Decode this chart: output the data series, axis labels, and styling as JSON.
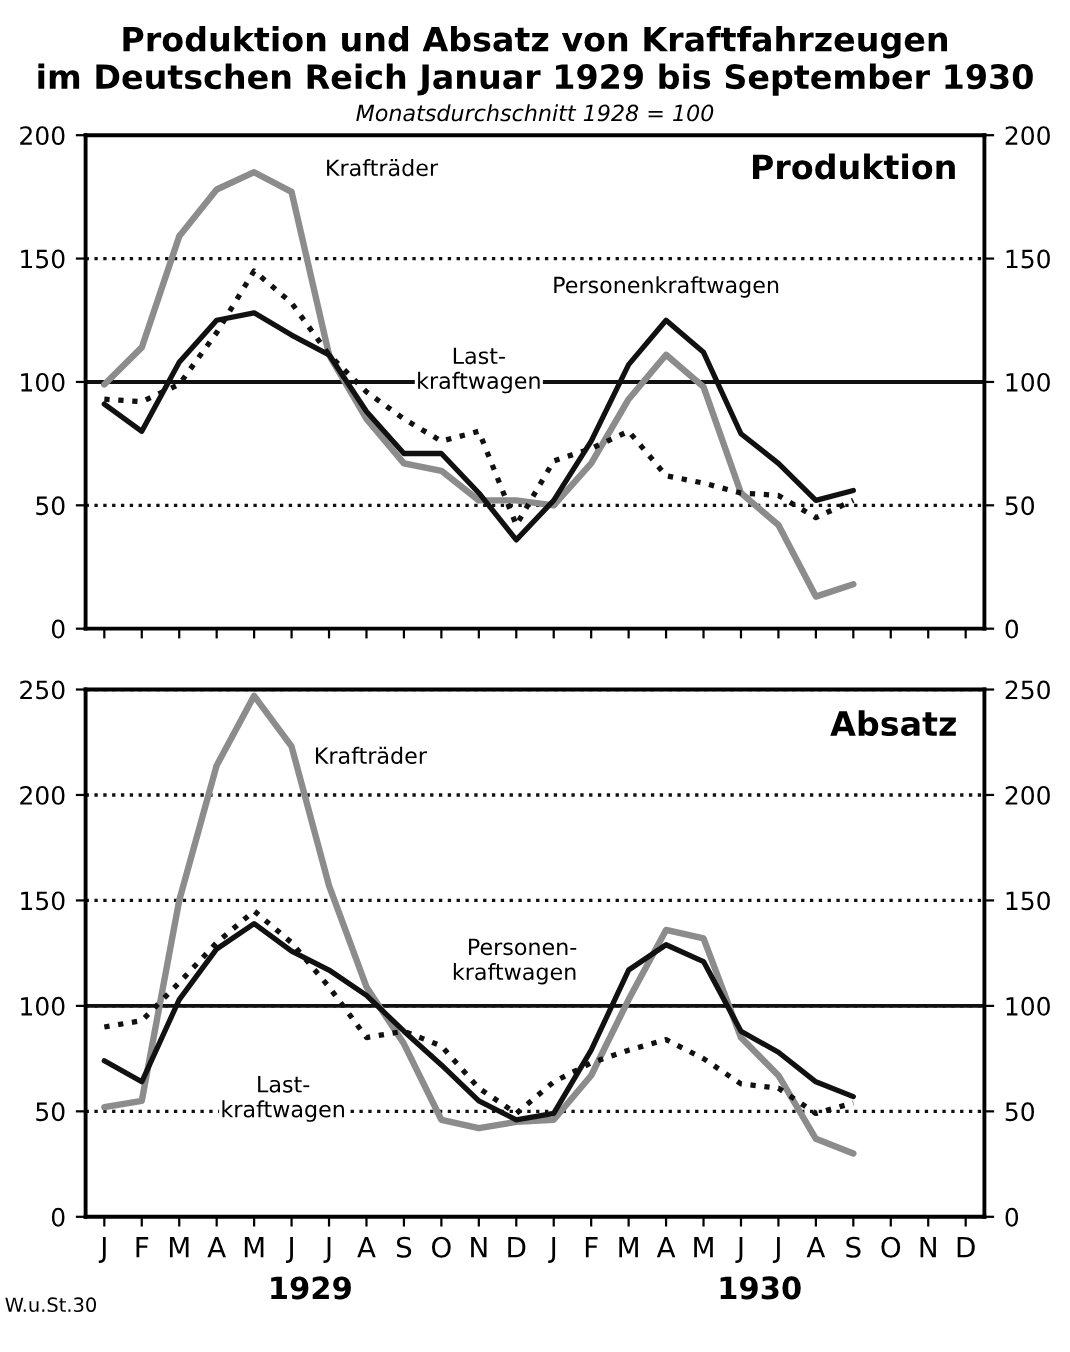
{
  "chart_data": [
    {
      "type": "line",
      "title": "Produktion und Absatz von Kraftfahrzeugen\nim Deutschen Reich Januar 1929 bis September 1930",
      "subtitle": "Monatsdurchschnitt 1928 = 100",
      "categories": [
        null,
        null,
        null,
        null,
        null,
        null,
        null,
        null,
        null,
        null,
        null,
        null,
        null,
        null,
        null,
        null,
        null,
        null,
        null,
        null,
        null,
        null,
        null,
        null
      ],
      "series": [
        {
          "name": "Krafträder",
          "color": "#8c8c8c",
          "line_style": "solid",
          "values": [
            99,
            114,
            159,
            178,
            185,
            177,
            111,
            85,
            67,
            64,
            52,
            52,
            50,
            67,
            93,
            111,
            98,
            55,
            42,
            13,
            18,
            null,
            null,
            null
          ]
        },
        {
          "name": "Personenkraftwagen",
          "color": "#111111",
          "line_style": "solid",
          "values": [
            91,
            80,
            108,
            125,
            128,
            119,
            111,
            88,
            71,
            71,
            55,
            36,
            52,
            76,
            107,
            125,
            112,
            79,
            67,
            52,
            56,
            null,
            null,
            null
          ]
        },
        {
          "name": "Last-\nkraftwagen",
          "color": "#111111",
          "line_style": "dotted",
          "values": [
            93,
            92,
            99,
            120,
            145,
            132,
            111,
            96,
            85,
            76,
            80,
            42,
            68,
            73,
            80,
            62,
            59,
            55,
            54,
            45,
            52,
            null,
            null,
            null
          ]
        }
      ],
      "ylim": [
        0,
        200
      ],
      "yticks": [
        0,
        50,
        100,
        150,
        200
      ],
      "y2lim": [
        0,
        200
      ],
      "y2ticks": [
        0,
        50,
        100,
        150,
        200
      ],
      "ref_lines": [
        {
          "axis": "y",
          "value": 100,
          "color": "#111111",
          "line_style": "solid"
        }
      ],
      "grid": "y",
      "legend": false,
      "marker": "none",
      "annotations": [
        "Produktion"
      ]
    },
    {
      "type": "line",
      "categories": [
        "J",
        "F",
        "M",
        "A",
        "M",
        "J",
        "J",
        "A",
        "S",
        "O",
        "N",
        "D",
        "J",
        "F",
        "M",
        "A",
        "M",
        "J",
        "J",
        "A",
        "S",
        "O",
        "N",
        "D"
      ],
      "series": [
        {
          "name": "Krafträder",
          "color": "#8c8c8c",
          "line_style": "solid",
          "values": [
            52,
            55,
            150,
            214,
            247,
            223,
            157,
            109,
            82,
            46,
            42,
            45,
            46,
            67,
            103,
            136,
            132,
            85,
            67,
            37,
            30,
            null,
            null,
            null
          ]
        },
        {
          "name": "Personen-\nkraftwagen",
          "color": "#111111",
          "line_style": "solid",
          "values": [
            74,
            64,
            103,
            127,
            139,
            126,
            117,
            105,
            88,
            72,
            55,
            46,
            49,
            79,
            117,
            129,
            121,
            88,
            78,
            64,
            57,
            null,
            null,
            null
          ]
        },
        {
          "name": "Last-\nkraftwagen",
          "color": "#111111",
          "line_style": "dotted",
          "values": [
            90,
            93,
            111,
            130,
            145,
            130,
            109,
            85,
            88,
            81,
            61,
            49,
            64,
            73,
            79,
            84,
            75,
            63,
            61,
            49,
            54,
            null,
            null,
            null
          ]
        }
      ],
      "ylim": [
        0,
        250
      ],
      "yticks": [
        0,
        50,
        100,
        150,
        200,
        250
      ],
      "y2lim": [
        0,
        250
      ],
      "y2ticks": [
        0,
        50,
        100,
        150,
        200,
        250
      ],
      "ref_lines": [
        {
          "axis": "y",
          "value": 100,
          "color": "#111111",
          "line_style": "solid"
        }
      ],
      "grid": "y",
      "legend": false,
      "marker": "none",
      "annotations": [
        "Absatz",
        "1929",
        "1930",
        "W.u.St.30"
      ]
    }
  ]
}
